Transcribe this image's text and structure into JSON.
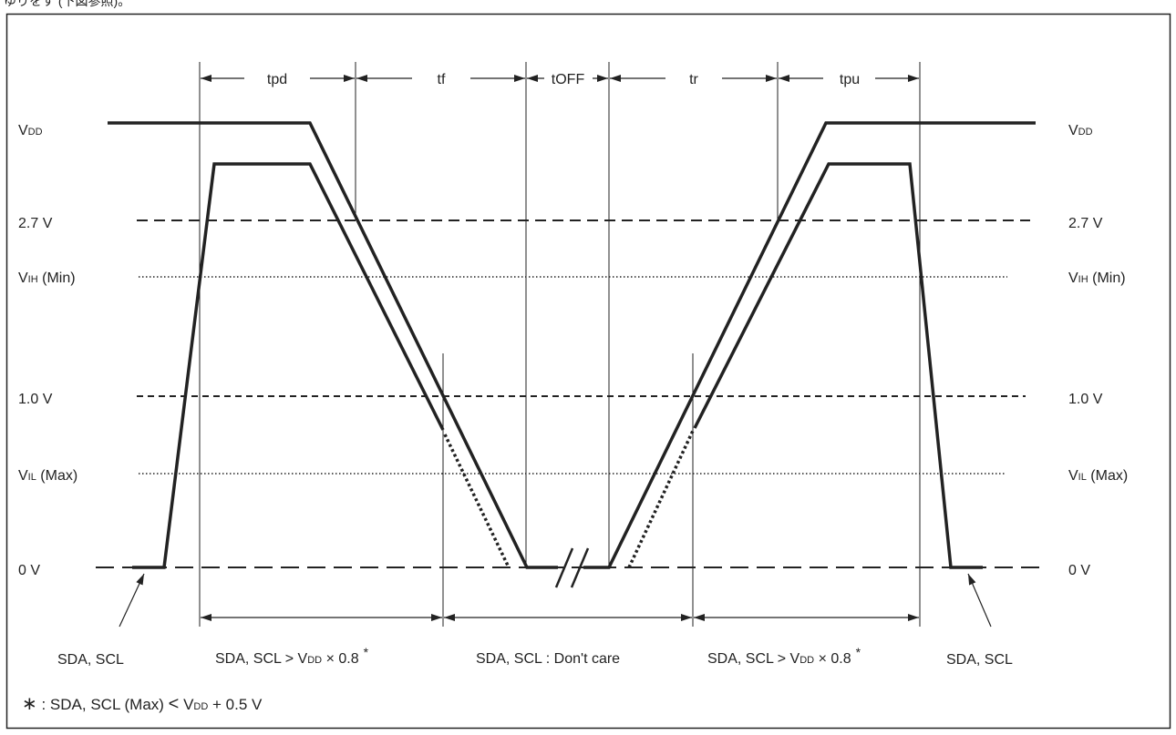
{
  "header_fragment": "ゆりをす (下図参照)。",
  "timing_labels": {
    "tpd": "tpd",
    "tf": "tf",
    "toff": "tOFF",
    "tr": "tr",
    "tpu": "tpu"
  },
  "levels_left": {
    "vdd_main": "V",
    "vdd_sub": "DD",
    "v27": "2.7 V",
    "vih_main": "V",
    "vih_sub": "IH",
    "vih_tail": " (Min)",
    "v10": "1.0 V",
    "vil_main": "V",
    "vil_sub": "IL",
    "vil_tail": " (Max)",
    "v0": "0 V"
  },
  "levels_right": {
    "vdd_main": "V",
    "vdd_sub": "DD",
    "v27": "2.7 V",
    "vih_main": "V",
    "vih_sub": "IH",
    "vih_tail": " (Min)",
    "v10": "1.0 V",
    "vil_main": "V",
    "vil_sub": "IL",
    "vil_tail": " (Max)",
    "v0": "0 V"
  },
  "bottom_labels": {
    "left_pointer": "SDA, SCL",
    "right_pointer": "SDA, SCL",
    "seg1_pre": "SDA, SCL > V",
    "seg1_sub": "DD",
    "seg1_post": " × 0.8",
    "seg1_star": "*",
    "seg2": "SDA, SCL : Don't care",
    "seg3_pre": "SDA, SCL > V",
    "seg3_sub": "DD",
    "seg3_post": " × 0.8",
    "seg3_star": "*"
  },
  "footnote": {
    "star": "∗",
    "pre": " : SDA, SCL (Max) ",
    "lt": "<",
    "v": " V",
    "sub": "DD",
    "post": " + 0.5 V"
  }
}
